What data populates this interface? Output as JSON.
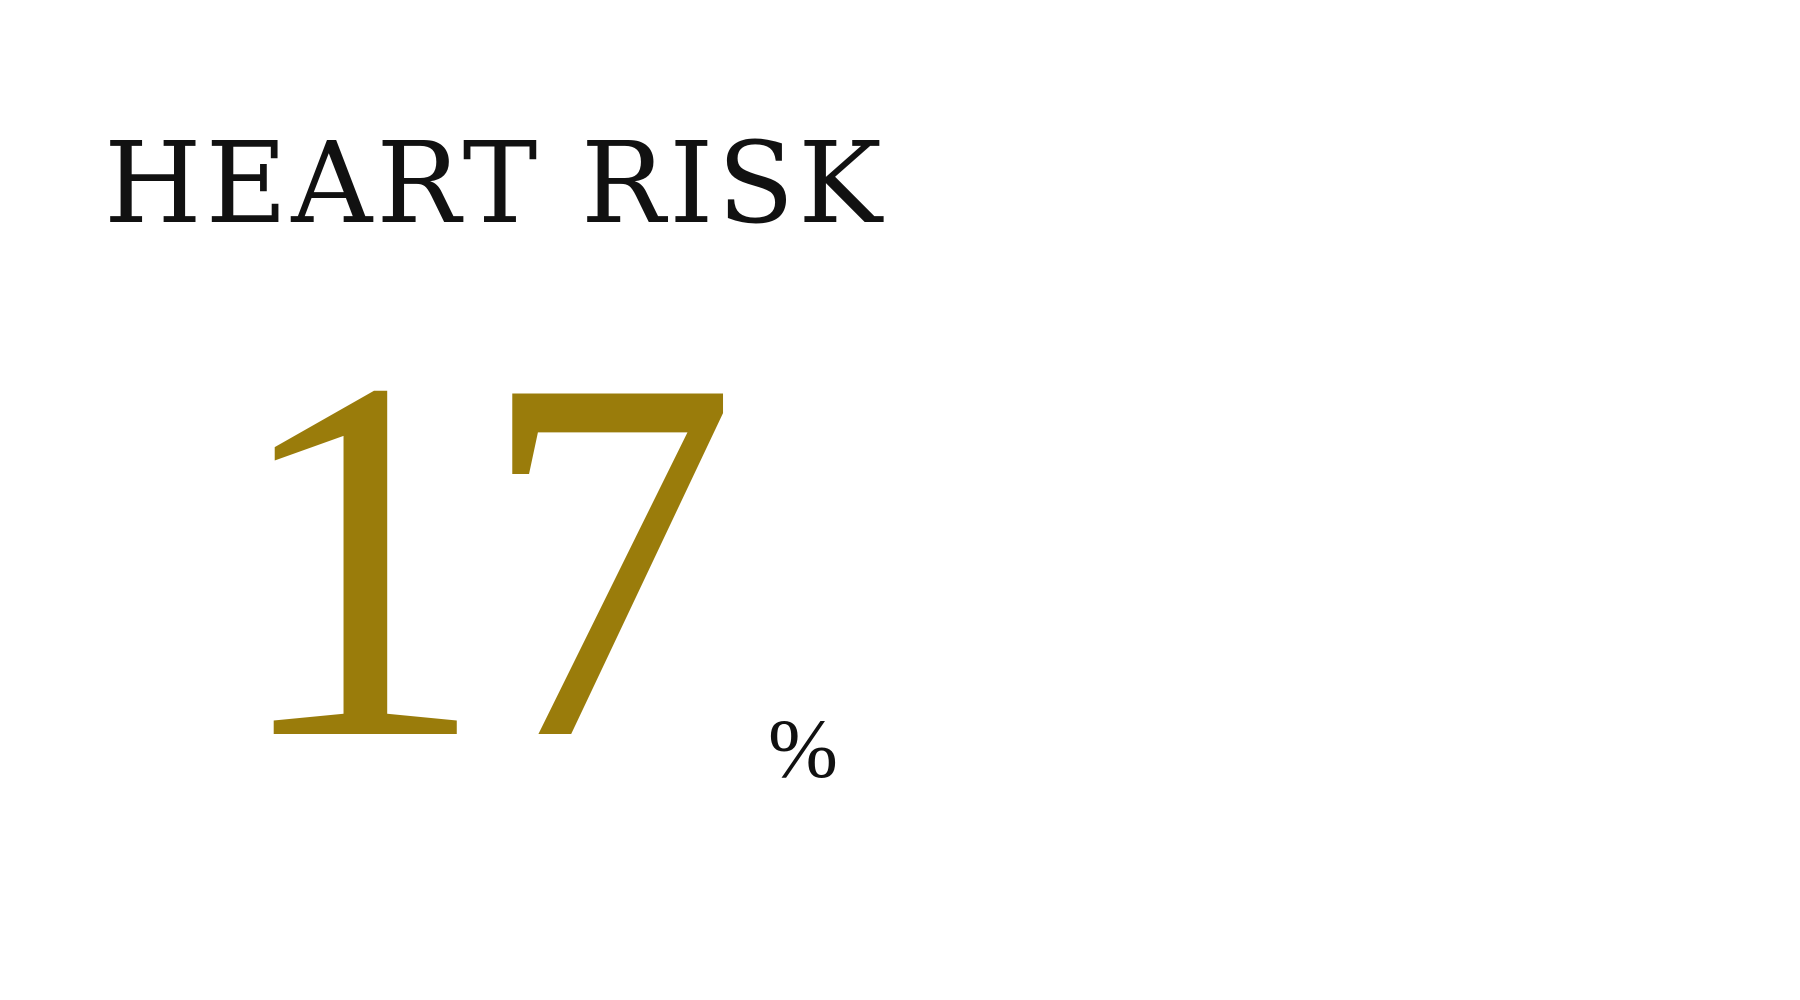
{
  "title": "HEART RISK",
  "metric": {
    "value": "17",
    "unit": "%"
  },
  "colors": {
    "background": "#ffffff",
    "title_text": "#111111",
    "value_text": "#9a7c0b",
    "unit_text": "#111111"
  }
}
